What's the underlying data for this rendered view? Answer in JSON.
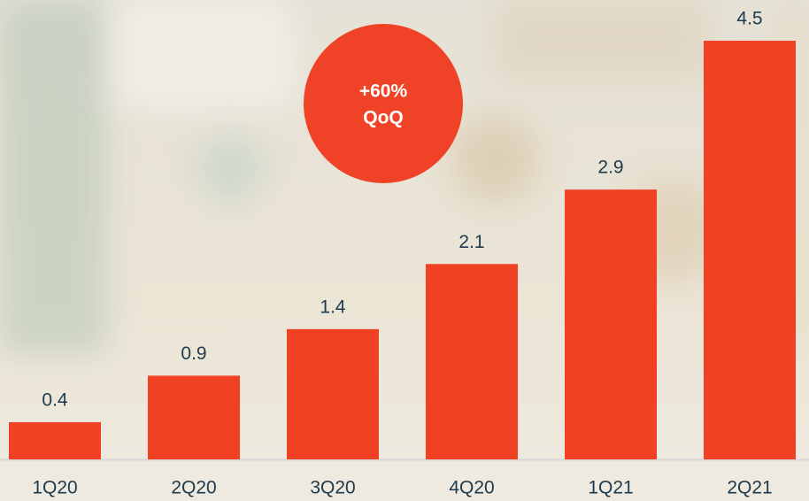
{
  "chart_data": {
    "type": "bar",
    "categories": [
      "1Q20",
      "2Q20",
      "3Q20",
      "4Q20",
      "1Q21",
      "2Q21"
    ],
    "values": [
      0.4,
      0.9,
      1.4,
      2.1,
      2.9,
      4.5
    ],
    "color": "#f04124",
    "ylim": [
      0,
      4.5
    ],
    "annotation": [
      "+60%",
      "QoQ"
    ],
    "annotation_color": "#f04226"
  }
}
